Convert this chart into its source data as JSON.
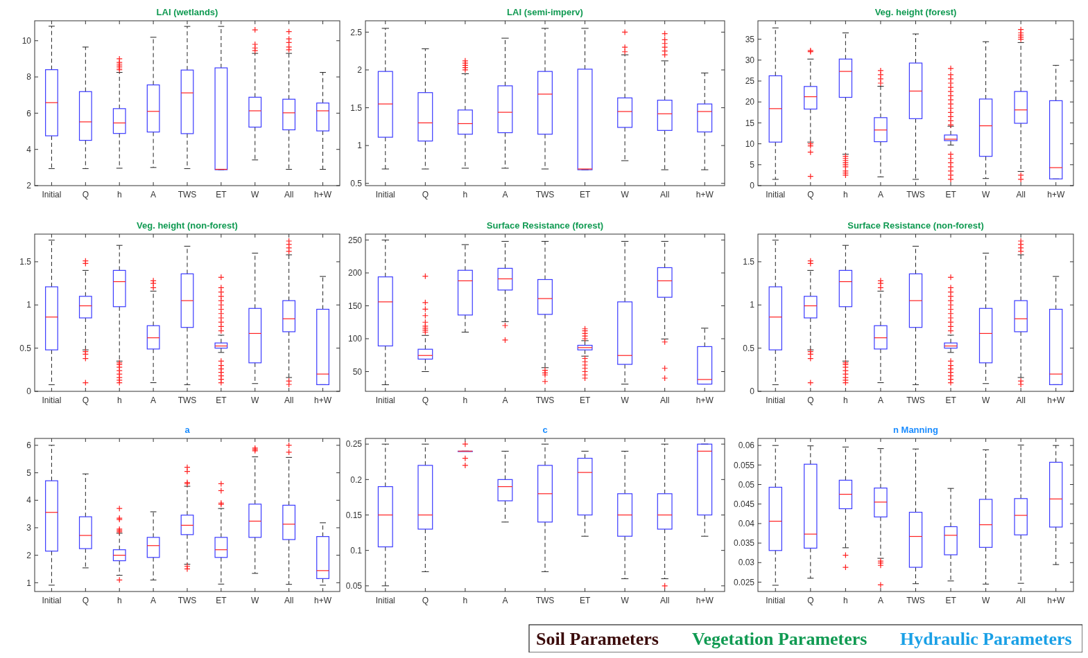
{
  "chart_data": [
    {
      "type": "box",
      "title": "LAI (wetlands)",
      "categories": [
        "Initial",
        "Q",
        "h",
        "A",
        "TWS",
        "ET",
        "W",
        "All",
        "h+W"
      ],
      "ylim": [
        2,
        11.1
      ],
      "yticks": [
        2,
        4,
        6,
        8,
        10
      ],
      "boxes": [
        {
          "low": 2.94,
          "q1": 4.75,
          "median": 6.58,
          "q3": 8.4,
          "high": 10.8
        },
        {
          "low": 2.94,
          "q1": 4.5,
          "median": 5.52,
          "q3": 7.19,
          "high": 9.65
        },
        {
          "low": 2.96,
          "q1": 4.88,
          "median": 5.46,
          "q3": 6.25,
          "high": 8.25,
          "outliers": [
            8.4,
            8.5,
            8.6,
            8.7,
            8.8,
            9.0
          ]
        },
        {
          "low": 3.0,
          "q1": 4.96,
          "median": 6.1,
          "q3": 7.56,
          "high": 10.19
        },
        {
          "low": 2.94,
          "q1": 4.87,
          "median": 7.12,
          "q3": 8.38,
          "high": 10.79
        },
        {
          "low": 2.88,
          "q1": 2.88,
          "median": 2.9,
          "q3": 8.5,
          "high": 10.79
        },
        {
          "low": 3.42,
          "q1": 5.23,
          "median": 6.13,
          "q3": 6.88,
          "high": 9.3,
          "outliers": [
            9.45,
            9.6,
            9.8,
            10.6
          ]
        },
        {
          "low": 2.9,
          "q1": 5.08,
          "median": 6.02,
          "q3": 6.77,
          "high": 9.3,
          "outliers": [
            9.5,
            9.65,
            9.9,
            10.1,
            10.5
          ]
        },
        {
          "low": 2.9,
          "q1": 5.02,
          "median": 6.13,
          "q3": 6.56,
          "high": 8.25
        }
      ]
    },
    {
      "type": "box",
      "title": "LAI (semi-imperv)",
      "categories": [
        "Initial",
        "Q",
        "h",
        "A",
        "TWS",
        "ET",
        "W",
        "All",
        "h+W"
      ],
      "ylim": [
        0.47,
        2.65
      ],
      "yticks": [
        0.5,
        1,
        1.5,
        2,
        2.5
      ],
      "boxes": [
        {
          "low": 0.69,
          "q1": 1.11,
          "median": 1.55,
          "q3": 1.98,
          "high": 2.55
        },
        {
          "low": 0.69,
          "q1": 1.06,
          "median": 1.3,
          "q3": 1.7,
          "high": 2.28
        },
        {
          "low": 0.7,
          "q1": 1.15,
          "median": 1.29,
          "q3": 1.47,
          "high": 1.95,
          "outliers": [
            2.0,
            2.03,
            2.06,
            2.09,
            2.12
          ]
        },
        {
          "low": 0.7,
          "q1": 1.17,
          "median": 1.44,
          "q3": 1.79,
          "high": 2.42
        },
        {
          "low": 0.69,
          "q1": 1.15,
          "median": 1.68,
          "q3": 1.98,
          "high": 2.55
        },
        {
          "low": 0.68,
          "q1": 0.68,
          "median": 0.69,
          "q3": 2.01,
          "high": 2.55
        },
        {
          "low": 0.8,
          "q1": 1.24,
          "median": 1.45,
          "q3": 1.63,
          "high": 2.2,
          "outliers": [
            2.24,
            2.3,
            2.5
          ]
        },
        {
          "low": 0.68,
          "q1": 1.2,
          "median": 1.42,
          "q3": 1.6,
          "high": 2.12,
          "outliers": [
            2.2,
            2.25,
            2.3,
            2.35,
            2.4,
            2.48
          ]
        },
        {
          "low": 0.68,
          "q1": 1.18,
          "median": 1.45,
          "q3": 1.55,
          "high": 1.96
        }
      ]
    },
    {
      "type": "box",
      "title": "Veg. height (forest)",
      "categories": [
        "Initial",
        "Q",
        "h",
        "A",
        "TWS",
        "ET",
        "W",
        "All",
        "h+W"
      ],
      "ylim": [
        0,
        39.4
      ],
      "yticks": [
        0,
        5,
        10,
        15,
        20,
        25,
        30,
        35
      ],
      "boxes": [
        {
          "low": 1.5,
          "q1": 10.4,
          "median": 18.4,
          "q3": 26.25,
          "high": 37.7
        },
        {
          "low": 10.4,
          "q1": 18.3,
          "median": 21.25,
          "q3": 23.7,
          "high": 30.25,
          "outliers": [
            2.2,
            8,
            9.5,
            10,
            32,
            32.3
          ]
        },
        {
          "low": 7.5,
          "q1": 21.1,
          "median": 27.3,
          "q3": 30.25,
          "high": 36.5,
          "outliers": [
            2.5,
            3,
            3.5,
            4.5,
            5,
            5.5,
            6,
            6.5,
            7
          ]
        },
        {
          "low": 2.1,
          "q1": 10.5,
          "median": 13.3,
          "q3": 16.25,
          "high": 23.75,
          "outliers": [
            24.5,
            25.5,
            26.5,
            27.5
          ]
        },
        {
          "low": 1.5,
          "q1": 16,
          "median": 22.6,
          "q3": 29.3,
          "high": 36.25
        },
        {
          "low": 9.7,
          "q1": 10.75,
          "median": 11.1,
          "q3": 12.1,
          "high": 14.2,
          "outliers": [
            1.5,
            2.5,
            3.5,
            4.5,
            5.5,
            6.5,
            7.5,
            14.5,
            15.5,
            16.5,
            17.5,
            18.5,
            19.5,
            20.5,
            21.5,
            22.5,
            23.5,
            24.5,
            25.5,
            26.5,
            28
          ]
        },
        {
          "low": 1.7,
          "q1": 7,
          "median": 14.3,
          "q3": 20.7,
          "high": 34.4
        },
        {
          "low": 3.4,
          "q1": 14.9,
          "median": 18.1,
          "q3": 22.5,
          "high": 34.2,
          "outliers": [
            1.5,
            2.5,
            35,
            35.5,
            36,
            36.5,
            37.3
          ]
        },
        {
          "low": 1.6,
          "q1": 1.6,
          "median": 4.3,
          "q3": 20.3,
          "high": 28.75
        }
      ]
    },
    {
      "type": "box",
      "title": "Veg. height (non-forest)",
      "categories": [
        "Initial",
        "Q",
        "h",
        "A",
        "TWS",
        "ET",
        "W",
        "All",
        "h+W"
      ],
      "ylim": [
        0,
        1.82
      ],
      "yticks": [
        0,
        0.5,
        1,
        1.5
      ],
      "boxes": [
        {
          "low": 0.077,
          "q1": 0.48,
          "median": 0.86,
          "q3": 1.21,
          "high": 1.75
        },
        {
          "low": 0.48,
          "q1": 0.85,
          "median": 0.99,
          "q3": 1.1,
          "high": 1.4,
          "outliers": [
            0.1,
            0.38,
            0.43,
            0.46,
            1.48,
            1.51
          ]
        },
        {
          "low": 0.35,
          "q1": 0.98,
          "median": 1.27,
          "q3": 1.4,
          "high": 1.69,
          "outliers": [
            0.1,
            0.13,
            0.16,
            0.2,
            0.24,
            0.28,
            0.31,
            0.33
          ]
        },
        {
          "low": 0.1,
          "q1": 0.49,
          "median": 0.62,
          "q3": 0.76,
          "high": 1.16,
          "outliers": [
            1.2,
            1.25,
            1.28
          ]
        },
        {
          "low": 0.077,
          "q1": 0.74,
          "median": 1.05,
          "q3": 1.36,
          "high": 1.68
        },
        {
          "low": 0.45,
          "q1": 0.5,
          "median": 0.525,
          "q3": 0.56,
          "high": 0.65,
          "outliers": [
            0.1,
            0.14,
            0.18,
            0.22,
            0.26,
            0.3,
            0.35,
            0.7,
            0.75,
            0.8,
            0.85,
            0.9,
            0.95,
            1.0,
            1.05,
            1.1,
            1.15,
            1.2,
            1.32
          ]
        },
        {
          "low": 0.09,
          "q1": 0.33,
          "median": 0.67,
          "q3": 0.96,
          "high": 1.6
        },
        {
          "low": 0.16,
          "q1": 0.69,
          "median": 0.84,
          "q3": 1.05,
          "high": 1.58,
          "outliers": [
            0.08,
            0.12,
            1.62,
            1.66,
            1.7,
            1.74
          ]
        },
        {
          "low": 0.077,
          "q1": 0.077,
          "median": 0.2,
          "q3": 0.95,
          "high": 1.33
        }
      ]
    },
    {
      "type": "box",
      "title": "Surface Resistance (forest)",
      "categories": [
        "Initial",
        "Q",
        "h",
        "A",
        "TWS",
        "ET",
        "W",
        "All",
        "h+W"
      ],
      "ylim": [
        20,
        259
      ],
      "yticks": [
        50,
        100,
        150,
        200,
        250
      ],
      "boxes": [
        {
          "low": 30,
          "q1": 89,
          "median": 156,
          "q3": 194,
          "high": 250
        },
        {
          "low": 50,
          "q1": 69,
          "median": 74.5,
          "q3": 84,
          "high": 105,
          "outliers": [
            110,
            113,
            116,
            119,
            125,
            135,
            145,
            155,
            195
          ]
        },
        {
          "low": 110,
          "q1": 136,
          "median": 188,
          "q3": 204,
          "high": 243
        },
        {
          "low": 126,
          "q1": 174,
          "median": 191,
          "q3": 207,
          "high": 248,
          "outliers": [
            98,
            120
          ]
        },
        {
          "low": 56,
          "q1": 137,
          "median": 161,
          "q3": 190,
          "high": 248,
          "outliers": [
            35,
            45,
            48,
            52
          ]
        },
        {
          "low": 73.5,
          "q1": 83,
          "median": 86.5,
          "q3": 90,
          "high": 97,
          "outliers": [
            40,
            45,
            50,
            55,
            60,
            65,
            70,
            100,
            104,
            108,
            112,
            115
          ]
        },
        {
          "low": 31,
          "q1": 61,
          "median": 74.5,
          "q3": 156,
          "high": 248
        },
        {
          "low": 99.6,
          "q1": 163,
          "median": 188,
          "q3": 208,
          "high": 248,
          "outliers": [
            40,
            55,
            95
          ]
        },
        {
          "low": 31,
          "q1": 31,
          "median": 38,
          "q3": 88,
          "high": 116
        }
      ]
    },
    {
      "type": "box",
      "title": "Surface Resistance (non-forest)",
      "categories": [
        "Initial",
        "Q",
        "h",
        "A",
        "TWS",
        "ET",
        "W",
        "All",
        "h+W"
      ],
      "ylim": [
        0,
        1.82
      ],
      "yticks": [
        0,
        0.5,
        1,
        1.5
      ],
      "boxes": [
        {
          "low": 0.077,
          "q1": 0.48,
          "median": 0.86,
          "q3": 1.21,
          "high": 1.75
        },
        {
          "low": 0.48,
          "q1": 0.85,
          "median": 0.99,
          "q3": 1.1,
          "high": 1.4,
          "outliers": [
            0.1,
            0.38,
            0.43,
            0.46,
            1.48,
            1.51
          ]
        },
        {
          "low": 0.35,
          "q1": 0.98,
          "median": 1.27,
          "q3": 1.4,
          "high": 1.69,
          "outliers": [
            0.1,
            0.13,
            0.16,
            0.2,
            0.24,
            0.28,
            0.31,
            0.33
          ]
        },
        {
          "low": 0.1,
          "q1": 0.49,
          "median": 0.62,
          "q3": 0.76,
          "high": 1.16,
          "outliers": [
            1.2,
            1.25,
            1.28
          ]
        },
        {
          "low": 0.077,
          "q1": 0.74,
          "median": 1.05,
          "q3": 1.36,
          "high": 1.68
        },
        {
          "low": 0.45,
          "q1": 0.5,
          "median": 0.525,
          "q3": 0.56,
          "high": 0.65,
          "outliers": [
            0.1,
            0.14,
            0.18,
            0.22,
            0.26,
            0.3,
            0.35,
            0.7,
            0.75,
            0.8,
            0.85,
            0.9,
            0.95,
            1.0,
            1.05,
            1.1,
            1.15,
            1.2,
            1.32
          ]
        },
        {
          "low": 0.09,
          "q1": 0.33,
          "median": 0.67,
          "q3": 0.96,
          "high": 1.6
        },
        {
          "low": 0.16,
          "q1": 0.69,
          "median": 0.84,
          "q3": 1.05,
          "high": 1.58,
          "outliers": [
            0.08,
            0.12,
            1.62,
            1.66,
            1.7,
            1.74
          ]
        },
        {
          "low": 0.077,
          "q1": 0.077,
          "median": 0.2,
          "q3": 0.95,
          "high": 1.33
        }
      ]
    },
    {
      "type": "box",
      "title": "a",
      "categories": [
        "Initial",
        "Q",
        "h",
        "A",
        "TWS",
        "ET",
        "W",
        "All",
        "h+W"
      ],
      "ylim": [
        0.68,
        6.25
      ],
      "yticks": [
        1,
        2,
        3,
        4,
        5,
        6
      ],
      "boxes": [
        {
          "low": 0.91,
          "q1": 2.15,
          "median": 3.56,
          "q3": 4.71,
          "high": 6.0
        },
        {
          "low": 1.54,
          "q1": 2.24,
          "median": 2.72,
          "q3": 3.4,
          "high": 4.96
        },
        {
          "low": 1.27,
          "q1": 1.8,
          "median": 2.0,
          "q3": 2.2,
          "high": 2.8,
          "outliers": [
            1.1,
            2.85,
            2.9,
            2.95,
            3.3,
            3.35,
            3.7
          ]
        },
        {
          "low": 1.1,
          "q1": 1.92,
          "median": 2.35,
          "q3": 2.65,
          "high": 3.58
        },
        {
          "low": 1.67,
          "q1": 2.75,
          "median": 3.09,
          "q3": 3.46,
          "high": 4.51,
          "outliers": [
            1.5,
            1.6,
            4.6,
            4.65,
            5.05,
            5.2
          ]
        },
        {
          "low": 0.95,
          "q1": 1.92,
          "median": 2.2,
          "q3": 2.65,
          "high": 3.7,
          "outliers": [
            3.85,
            3.9,
            4.35,
            4.6
          ]
        },
        {
          "low": 1.34,
          "q1": 2.65,
          "median": 3.24,
          "q3": 3.86,
          "high": 5.58,
          "outliers": [
            5.8,
            5.85,
            5.9
          ]
        },
        {
          "low": 0.94,
          "q1": 2.57,
          "median": 3.13,
          "q3": 3.82,
          "high": 5.56,
          "outliers": [
            5.75,
            6.0
          ]
        },
        {
          "low": 0.91,
          "q1": 1.15,
          "median": 1.44,
          "q3": 2.68,
          "high": 3.18
        }
      ]
    },
    {
      "type": "box",
      "title": "c",
      "categories": [
        "Initial",
        "Q",
        "h",
        "A",
        "TWS",
        "ET",
        "W",
        "All",
        "h+W"
      ],
      "ylim": [
        0.042,
        0.258
      ],
      "yticks": [
        0.05,
        0.1,
        0.15,
        0.2,
        0.25
      ],
      "boxes": [
        {
          "low": 0.05,
          "q1": 0.105,
          "median": 0.15,
          "q3": 0.19,
          "high": 0.25
        },
        {
          "low": 0.07,
          "q1": 0.13,
          "median": 0.15,
          "q3": 0.22,
          "high": 0.25
        },
        {
          "low": 0.24,
          "q1": 0.24,
          "median": 0.24,
          "q3": 0.24,
          "high": 0.24,
          "outliers": [
            0.22,
            0.23,
            0.25
          ]
        },
        {
          "low": 0.14,
          "q1": 0.17,
          "median": 0.19,
          "q3": 0.2,
          "high": 0.24
        },
        {
          "low": 0.07,
          "q1": 0.14,
          "median": 0.18,
          "q3": 0.22,
          "high": 0.25
        },
        {
          "low": 0.12,
          "q1": 0.15,
          "median": 0.21,
          "q3": 0.23,
          "high": 0.24
        },
        {
          "low": 0.06,
          "q1": 0.12,
          "median": 0.15,
          "q3": 0.18,
          "high": 0.24
        },
        {
          "low": 0.06,
          "q1": 0.13,
          "median": 0.15,
          "q3": 0.18,
          "high": 0.25,
          "outliers": [
            0.05
          ]
        },
        {
          "low": 0.12,
          "q1": 0.15,
          "median": 0.24,
          "q3": 0.25,
          "high": 0.25
        }
      ]
    },
    {
      "type": "box",
      "title": "n Manning",
      "categories": [
        "Initial",
        "Q",
        "h",
        "A",
        "TWS",
        "ET",
        "W",
        "All",
        "h+W"
      ],
      "ylim": [
        0.0226,
        0.0618
      ],
      "yticks": [
        0.025,
        0.03,
        0.035,
        0.04,
        0.045,
        0.05,
        0.055,
        0.06
      ],
      "boxes": [
        {
          "low": 0.0242,
          "q1": 0.0331,
          "median": 0.0406,
          "q3": 0.0493,
          "high": 0.06
        },
        {
          "low": 0.026,
          "q1": 0.0337,
          "median": 0.0373,
          "q3": 0.0552,
          "high": 0.0599
        },
        {
          "low": 0.0338,
          "q1": 0.0438,
          "median": 0.0475,
          "q3": 0.0511,
          "high": 0.0596,
          "outliers": [
            0.0288,
            0.0319
          ]
        },
        {
          "low": 0.0311,
          "q1": 0.0417,
          "median": 0.0455,
          "q3": 0.0491,
          "high": 0.0592,
          "outliers": [
            0.0243,
            0.0293,
            0.0299,
            0.0304
          ]
        },
        {
          "low": 0.0246,
          "q1": 0.0288,
          "median": 0.0367,
          "q3": 0.0429,
          "high": 0.0591
        },
        {
          "low": 0.0253,
          "q1": 0.032,
          "median": 0.037,
          "q3": 0.0392,
          "high": 0.049
        },
        {
          "low": 0.0245,
          "q1": 0.0339,
          "median": 0.0397,
          "q3": 0.0462,
          "high": 0.0589
        },
        {
          "low": 0.0247,
          "q1": 0.0371,
          "median": 0.0421,
          "q3": 0.0464,
          "high": 0.0601
        },
        {
          "low": 0.0295,
          "q1": 0.0391,
          "median": 0.0463,
          "q3": 0.0557,
          "high": 0.06
        }
      ]
    },
    {
      "type": "other",
      "annotations": [
        "Soil Parameters",
        "Vegetation Parameters",
        "Hydraulic Parameters"
      ]
    }
  ]
}
